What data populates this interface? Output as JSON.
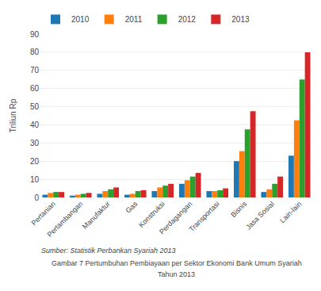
{
  "chart_data": {
    "type": "bar",
    "title": "Gambar 7 Pertumbuhan Pembiayaan per Sektor Ekonomi Bank Umum Syariah",
    "subtitle": "Tahun 2013",
    "annotations": [
      "Sumber: Statistik Perbankan Syariah 2013"
    ],
    "ylabel": "Triliun Rp",
    "categories": [
      "Pertanian",
      "Pertambangan",
      "Manufaktur",
      "Gas",
      "Konstruksi",
      "Perdagangan",
      "Transportasi",
      "Bisnis",
      "Jasa Sosial",
      "Lain-lain"
    ],
    "series": [
      {
        "name": "2010",
        "values": [
          1.5,
          1.0,
          2.0,
          1.5,
          3.5,
          7.5,
          3.5,
          20.0,
          3.0,
          23.0
        ]
      },
      {
        "name": "2011",
        "values": [
          2.5,
          1.5,
          3.5,
          2.0,
          5.5,
          9.5,
          3.5,
          25.5,
          4.5,
          42.5
        ]
      },
      {
        "name": "2012",
        "values": [
          3.0,
          2.0,
          4.5,
          3.5,
          6.5,
          11.5,
          4.0,
          37.5,
          7.5,
          65.0
        ]
      },
      {
        "name": "2013",
        "values": [
          3.0,
          2.5,
          5.5,
          4.0,
          7.5,
          13.5,
          5.0,
          47.5,
          11.5,
          80.0
        ]
      }
    ],
    "ylim": [
      0,
      90
    ],
    "yticks": [
      0,
      10,
      20,
      30,
      40,
      50,
      60,
      70,
      80,
      90
    ],
    "grid": true,
    "legend": "top"
  }
}
